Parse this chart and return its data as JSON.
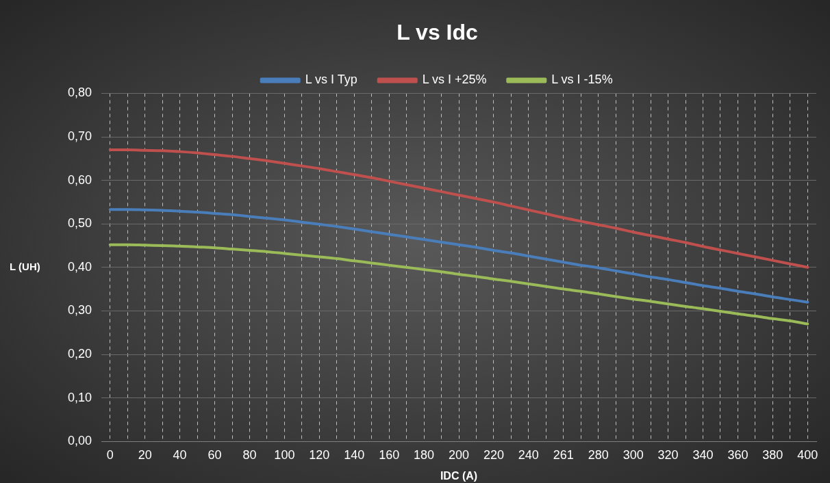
{
  "chart_data": {
    "type": "line",
    "title": "L vs Idc",
    "xlabel": "IDC (A)",
    "ylabel": "L (UH)",
    "categories": [
      "0",
      null,
      "20",
      null,
      "40",
      null,
      "60",
      null,
      "80",
      null,
      "100",
      null,
      "120",
      null,
      "140",
      null,
      "160",
      null,
      "180",
      null,
      "200",
      null,
      "220",
      null,
      "240",
      null,
      "261",
      null,
      "280",
      null,
      "300",
      null,
      "320",
      null,
      "340",
      null,
      "360",
      null,
      "380",
      null,
      "400"
    ],
    "series": [
      {
        "name": "L vs I Typ",
        "color": "#4a7ebb",
        "values": [
          0.533,
          0.533,
          0.532,
          0.531,
          0.529,
          0.527,
          0.524,
          0.521,
          0.517,
          0.513,
          0.509,
          0.504,
          0.499,
          0.494,
          0.488,
          0.482,
          0.476,
          0.47,
          0.464,
          0.458,
          0.452,
          0.446,
          0.439,
          0.433,
          0.426,
          0.419,
          0.412,
          0.405,
          0.399,
          0.392,
          0.385,
          0.378,
          0.372,
          0.365,
          0.358,
          0.352,
          0.345,
          0.339,
          0.332,
          0.326,
          0.32
        ]
      },
      {
        "name": "L vs I +25%",
        "color": "#c0504d",
        "values": [
          0.67,
          0.67,
          0.669,
          0.668,
          0.666,
          0.663,
          0.659,
          0.655,
          0.65,
          0.645,
          0.639,
          0.633,
          0.627,
          0.62,
          0.613,
          0.606,
          0.598,
          0.59,
          0.582,
          0.574,
          0.566,
          0.558,
          0.55,
          0.541,
          0.532,
          0.523,
          0.514,
          0.506,
          0.498,
          0.49,
          0.481,
          0.473,
          0.465,
          0.457,
          0.448,
          0.44,
          0.432,
          0.424,
          0.416,
          0.408,
          0.4
        ]
      },
      {
        "name": "L vs I -15%",
        "color": "#9bbb59",
        "values": [
          0.452,
          0.452,
          0.451,
          0.45,
          0.449,
          0.447,
          0.445,
          0.442,
          0.439,
          0.436,
          0.432,
          0.428,
          0.424,
          0.42,
          0.415,
          0.41,
          0.405,
          0.4,
          0.395,
          0.39,
          0.384,
          0.379,
          0.373,
          0.368,
          0.362,
          0.356,
          0.35,
          0.345,
          0.339,
          0.333,
          0.327,
          0.322,
          0.316,
          0.31,
          0.305,
          0.299,
          0.293,
          0.288,
          0.282,
          0.277,
          0.27
        ]
      }
    ],
    "ylim": [
      0,
      0.8
    ],
    "yticks": [
      {
        "value": 0,
        "label": "0,00"
      },
      {
        "value": 0.1,
        "label": "0,10"
      },
      {
        "value": 0.2,
        "label": "0,20"
      },
      {
        "value": 0.3,
        "label": "0,30"
      },
      {
        "value": 0.4,
        "label": "0,40"
      },
      {
        "value": 0.5,
        "label": "0,50"
      },
      {
        "value": 0.6,
        "label": "0,60"
      },
      {
        "value": 0.7,
        "label": "0,70"
      },
      {
        "value": 0.8,
        "label": "0,80"
      }
    ],
    "grid": true,
    "legend": "top",
    "marker": "none",
    "line_style": "solid"
  }
}
